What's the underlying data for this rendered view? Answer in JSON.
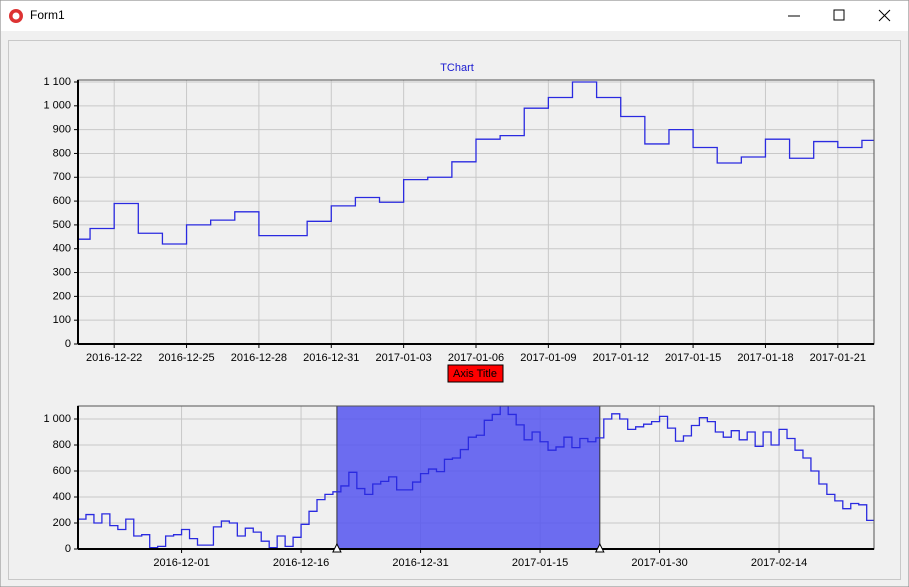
{
  "window": {
    "title": "Form1"
  },
  "chart_data": [
    {
      "type": "step",
      "title": "TChart",
      "xlabel": "Axis Title",
      "x": [
        "2016-12-20",
        "2016-12-21",
        "2016-12-22",
        "2016-12-23",
        "2016-12-24",
        "2016-12-25",
        "2016-12-26",
        "2016-12-27",
        "2016-12-28",
        "2016-12-29",
        "2016-12-30",
        "2016-12-31",
        "2017-01-01",
        "2017-01-02",
        "2017-01-03",
        "2017-01-04",
        "2017-01-05",
        "2017-01-06",
        "2017-01-07",
        "2017-01-08",
        "2017-01-09",
        "2017-01-10",
        "2017-01-11",
        "2017-01-12",
        "2017-01-13",
        "2017-01-14",
        "2017-01-15",
        "2017-01-16",
        "2017-01-17",
        "2017-01-18",
        "2017-01-19",
        "2017-01-20",
        "2017-01-21",
        "2017-01-22"
      ],
      "values": [
        440,
        485,
        590,
        465,
        420,
        500,
        520,
        555,
        455,
        455,
        515,
        580,
        615,
        595,
        690,
        700,
        765,
        860,
        875,
        990,
        1035,
        1100,
        1035,
        955,
        840,
        900,
        825,
        760,
        785,
        860,
        780,
        850,
        825,
        855
      ],
      "color": "#2a2ae0",
      "xlim": [
        "2016-12-20T12:00",
        "2017-01-22T12:00"
      ],
      "xticks": [
        "2016-12-22",
        "2016-12-25",
        "2016-12-28",
        "2016-12-31",
        "2017-01-03",
        "2017-01-06",
        "2017-01-09",
        "2017-01-12",
        "2017-01-15",
        "2017-01-18",
        "2017-01-21"
      ],
      "ylim": [
        0,
        1100
      ],
      "yticks": [
        0,
        100,
        200,
        300,
        400,
        500,
        600,
        700,
        800,
        900,
        {
          "value": 1000,
          "label": "1 000"
        },
        {
          "value": 1100,
          "label": "1 100"
        }
      ],
      "grid": true
    },
    {
      "type": "step",
      "x": [
        "2016-11-18",
        "2016-11-19",
        "2016-11-20",
        "2016-11-21",
        "2016-11-22",
        "2016-11-23",
        "2016-11-24",
        "2016-11-25",
        "2016-11-26",
        "2016-11-27",
        "2016-11-28",
        "2016-11-29",
        "2016-11-30",
        "2016-12-01",
        "2016-12-02",
        "2016-12-03",
        "2016-12-04",
        "2016-12-05",
        "2016-12-06",
        "2016-12-07",
        "2016-12-08",
        "2016-12-09",
        "2016-12-10",
        "2016-12-11",
        "2016-12-12",
        "2016-12-13",
        "2016-12-14",
        "2016-12-15",
        "2016-12-16",
        "2016-12-17",
        "2016-12-18",
        "2016-12-19",
        "2016-12-20",
        "2016-12-21",
        "2016-12-22",
        "2016-12-23",
        "2016-12-24",
        "2016-12-25",
        "2016-12-26",
        "2016-12-27",
        "2016-12-28",
        "2016-12-29",
        "2016-12-30",
        "2016-12-31",
        "2017-01-01",
        "2017-01-02",
        "2017-01-03",
        "2017-01-04",
        "2017-01-05",
        "2017-01-06",
        "2017-01-07",
        "2017-01-08",
        "2017-01-09",
        "2017-01-10",
        "2017-01-11",
        "2017-01-12",
        "2017-01-13",
        "2017-01-14",
        "2017-01-15",
        "2017-01-16",
        "2017-01-17",
        "2017-01-18",
        "2017-01-19",
        "2017-01-20",
        "2017-01-21",
        "2017-01-22",
        "2017-01-23",
        "2017-01-24",
        "2017-01-25",
        "2017-01-26",
        "2017-01-27",
        "2017-01-28",
        "2017-01-29",
        "2017-01-30",
        "2017-01-31",
        "2017-02-01",
        "2017-02-02",
        "2017-02-03",
        "2017-02-04",
        "2017-02-05",
        "2017-02-06",
        "2017-02-07",
        "2017-02-08",
        "2017-02-09",
        "2017-02-10",
        "2017-02-11",
        "2017-02-12",
        "2017-02-13",
        "2017-02-14",
        "2017-02-15",
        "2017-02-16",
        "2017-02-17",
        "2017-02-18",
        "2017-02-19",
        "2017-02-20",
        "2017-02-21",
        "2017-02-22",
        "2017-02-23",
        "2017-02-24",
        "2017-02-25"
      ],
      "values": [
        230,
        265,
        200,
        270,
        180,
        150,
        230,
        100,
        110,
        10,
        20,
        100,
        110,
        150,
        80,
        30,
        30,
        170,
        215,
        200,
        100,
        160,
        130,
        60,
        10,
        100,
        20,
        90,
        190,
        290,
        380,
        420,
        440,
        485,
        590,
        465,
        420,
        500,
        520,
        555,
        455,
        455,
        515,
        580,
        615,
        595,
        690,
        700,
        765,
        860,
        875,
        990,
        1035,
        1100,
        1035,
        955,
        840,
        900,
        825,
        760,
        785,
        860,
        780,
        850,
        825,
        855,
        1000,
        1040,
        1000,
        920,
        940,
        960,
        980,
        1020,
        930,
        830,
        870,
        950,
        1010,
        980,
        900,
        860,
        910,
        840,
        900,
        790,
        900,
        800,
        920,
        850,
        760,
        700,
        600,
        500,
        420,
        370,
        310,
        350,
        340,
        220
      ],
      "color": "#2a2ae0",
      "xlim": [
        "2016-11-18",
        "2017-02-25T22:00"
      ],
      "xticks": [
        "2016-12-01",
        "2016-12-16",
        "2016-12-31",
        "2017-01-15",
        "2017-01-30",
        "2017-02-14"
      ],
      "ylim": [
        0,
        1100
      ],
      "yticks": [
        0,
        200,
        400,
        600,
        800,
        {
          "value": 1000,
          "label": "1 000"
        }
      ],
      "grid": true,
      "selection": [
        "2016-12-20T12:00",
        "2017-01-22T12:00"
      ],
      "selection_color": "#5555f0"
    }
  ]
}
